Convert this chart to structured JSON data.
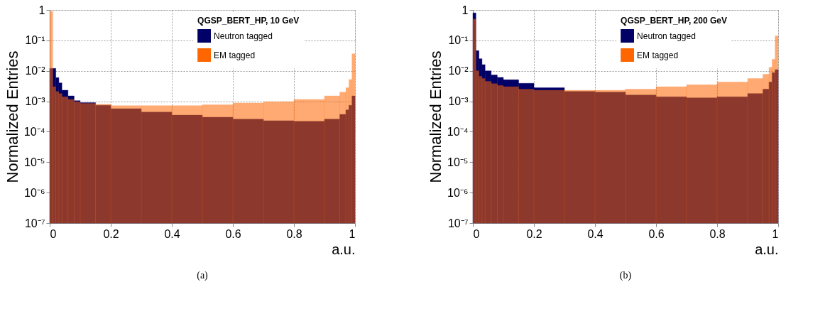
{
  "chart_data": [
    {
      "type": "histogram",
      "xlabel": "a.u.",
      "ylabel": "Normalized Entries",
      "legend_title": "QGSP_BERT_HP, 10 GeV",
      "annotations": [
        "(a)"
      ],
      "bins": [
        0,
        0.01,
        0.02,
        0.03,
        0.04,
        0.06,
        0.08,
        0.1,
        0.15,
        0.2,
        0.3,
        0.4,
        0.5,
        0.6,
        0.7,
        0.8,
        0.9,
        0.95,
        0.97,
        0.98,
        0.99,
        1
      ],
      "series": [
        {
          "name": "Neutron tagged",
          "color": "#000066",
          "values": [
            0.012,
            0.012,
            0.006,
            0.004,
            0.0023,
            0.0015,
            0.00105,
            0.0009,
            0.00074,
            0.00057,
            0.00044,
            0.00035,
            0.0003,
            0.00026,
            0.00023,
            0.00022,
            0.00026,
            0.00037,
            0.00052,
            0.00074,
            0.0015
          ]
        },
        {
          "name": "EM tagged",
          "color": "#ff6600",
          "values": [
            0.9,
            0.003,
            0.0021,
            0.0018,
            0.0014,
            0.00115,
            0.00097,
            0.00085,
            0.0008,
            0.00072,
            0.00072,
            0.00072,
            0.00077,
            0.00088,
            0.00097,
            0.00115,
            0.0015,
            0.002,
            0.0028,
            0.0052,
            0.036
          ]
        }
      ],
      "xlim": [
        0,
        1
      ],
      "xticks": [
        0,
        0.2,
        0.4,
        0.6,
        0.8,
        1
      ],
      "ylim": [
        1e-07,
        1
      ],
      "yticks": [
        {
          "value": 1e-07,
          "label": "10⁻⁷"
        },
        {
          "value": 1e-06,
          "label": "10⁻⁶"
        },
        {
          "value": 1e-05,
          "label": "10⁻⁵"
        },
        {
          "value": 0.0001,
          "label": "10⁻⁴"
        },
        {
          "value": 0.001,
          "label": "10⁻³"
        },
        {
          "value": 0.01,
          "label": "10⁻²"
        },
        {
          "value": 0.1,
          "label": "10⁻¹"
        },
        1
      ],
      "log": "y",
      "grid": true,
      "legend": "top right"
    },
    {
      "type": "histogram",
      "xlabel": "a.u.",
      "ylabel": "Normalized Entries",
      "legend_title": "QGSP_BERT_HP, 200 GeV",
      "annotations": [
        "(b)"
      ],
      "bins": [
        0,
        0.01,
        0.02,
        0.03,
        0.04,
        0.06,
        0.08,
        0.1,
        0.15,
        0.2,
        0.3,
        0.4,
        0.5,
        0.6,
        0.7,
        0.8,
        0.9,
        0.95,
        0.97,
        0.98,
        0.99,
        1
      ],
      "series": [
        {
          "name": "Neutron tagged",
          "color": "#000066",
          "values": [
            0.8,
            0.046,
            0.025,
            0.016,
            0.01,
            0.0073,
            0.0061,
            0.0051,
            0.0039,
            0.0028,
            0.0021,
            0.002,
            0.0016,
            0.0014,
            0.0013,
            0.0014,
            0.0018,
            0.0025,
            0.0043,
            0.0087,
            0.011
          ]
        },
        {
          "name": "EM tagged",
          "color": "#ff6600",
          "values": [
            0.5,
            0.01,
            0.0066,
            0.0056,
            0.0045,
            0.0038,
            0.0033,
            0.003,
            0.0025,
            0.0023,
            0.0023,
            0.0023,
            0.0025,
            0.003,
            0.0035,
            0.0043,
            0.0056,
            0.0077,
            0.013,
            0.024,
            0.14
          ]
        }
      ],
      "xlim": [
        0,
        1
      ],
      "xticks": [
        0,
        0.2,
        0.4,
        0.6,
        0.8,
        1
      ],
      "ylim": [
        1e-07,
        1
      ],
      "yticks": [
        {
          "value": 1e-07,
          "label": "10⁻⁷"
        },
        {
          "value": 1e-06,
          "label": "10⁻⁶"
        },
        {
          "value": 1e-05,
          "label": "10⁻⁵"
        },
        {
          "value": 0.0001,
          "label": "10⁻⁴"
        },
        {
          "value": 0.001,
          "label": "10⁻³"
        },
        {
          "value": 0.01,
          "label": "10⁻²"
        },
        {
          "value": 0.1,
          "label": "10⁻¹"
        },
        1
      ],
      "log": "y",
      "grid": true,
      "legend": "top right"
    }
  ]
}
